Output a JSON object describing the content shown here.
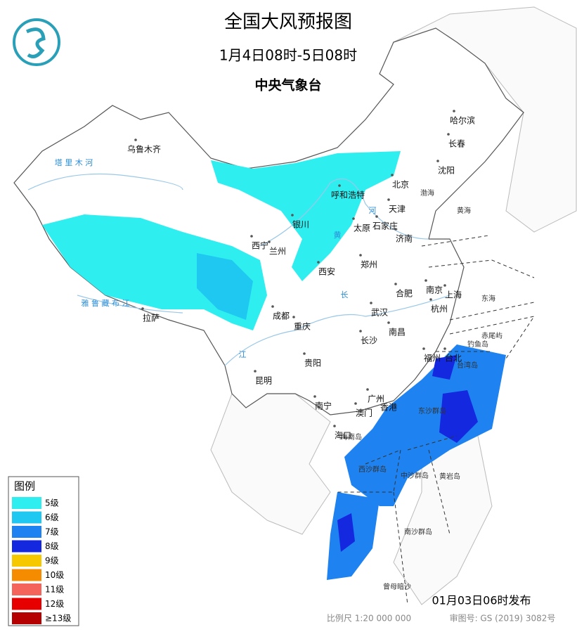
{
  "header": {
    "title": "全国大风预报图",
    "period": "1月4日08时-5日08时",
    "agency": "中央气象台"
  },
  "cities": [
    "乌鲁木齐",
    "哈尔滨",
    "长春",
    "沈阳",
    "北京",
    "天津",
    "呼和浩特",
    "银川",
    "太原",
    "石家庄",
    "西宁",
    "兰州",
    "济南",
    "郑州",
    "西安",
    "合肥",
    "南京",
    "上海",
    "杭州",
    "武汉",
    "成都",
    "重庆",
    "拉萨",
    "南昌",
    "长沙",
    "福州",
    "台北",
    "贵阳",
    "昆明",
    "南宁",
    "广州",
    "澳门",
    "香港",
    "海口"
  ],
  "seas": [
    "渤海",
    "黄海",
    "东海",
    "台湾岛",
    "钓鱼岛",
    "赤尾屿",
    "东沙群岛",
    "海南岛",
    "西沙群岛",
    "中沙群岛",
    "黄岩岛",
    "南沙群岛",
    "曾母暗沙"
  ],
  "rivers": [
    "塔 里 木 河",
    "雅 鲁 藏 布 江",
    "长",
    "江",
    "黄",
    "河"
  ],
  "legend": {
    "title": "图例",
    "items": [
      {
        "label": "5级",
        "color": "#2eeef0"
      },
      {
        "label": "6级",
        "color": "#1ec8f0"
      },
      {
        "label": "7级",
        "color": "#1e82f0"
      },
      {
        "label": "8级",
        "color": "#1428e0"
      },
      {
        "label": "9级",
        "color": "#f5c800"
      },
      {
        "label": "10级",
        "color": "#f58c00"
      },
      {
        "label": "11级",
        "color": "#f5645a"
      },
      {
        "label": "12级",
        "color": "#e60000"
      },
      {
        "label": "≥13级",
        "color": "#b40000"
      }
    ]
  },
  "footer": {
    "issued": "01月03日06时发布",
    "scale": "比例尺 1:20 000 000",
    "approval": "审图号: GS (2019) 3082号"
  }
}
